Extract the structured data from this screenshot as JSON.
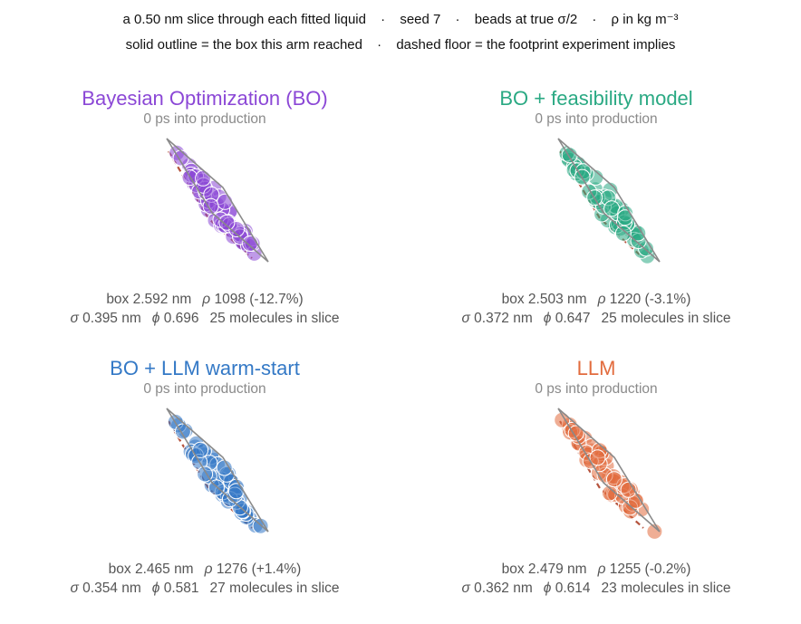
{
  "header": {
    "line1": [
      "a 0.50 nm slice through each fitted liquid",
      "seed 7",
      "beads at true σ/2",
      "ρ in kg m⁻³"
    ],
    "line2": [
      "solid outline = the box this arm reached",
      "dashed floor = the footprint experiment implies"
    ],
    "separator": "·"
  },
  "panels": [
    {
      "title": "Bayesian Optimization (BO)",
      "color": "#8b47d6",
      "subtitle": "0 ps into production",
      "box_label": "box 2.592 nm",
      "rho_label": "1098 (-12.7%)",
      "sigma_label": "0.395 nm",
      "phi_label": "0.696",
      "molecules_label": "25 molecules in slice",
      "box_nm": 2.592,
      "rho": 1098,
      "rho_dev_pct": -12.7,
      "sigma_nm": 0.395,
      "phi": 0.696,
      "molecules": 25
    },
    {
      "title": "BO + feasibility model",
      "color": "#2aa983",
      "subtitle": "0 ps into production",
      "box_label": "box 2.503 nm",
      "rho_label": "1220 (-3.1%)",
      "sigma_label": "0.372 nm",
      "phi_label": "0.647",
      "molecules_label": "25 molecules in slice",
      "box_nm": 2.503,
      "rho": 1220,
      "rho_dev_pct": -3.1,
      "sigma_nm": 0.372,
      "phi": 0.647,
      "molecules": 25
    },
    {
      "title": "BO + LLM warm-start",
      "color": "#3479c6",
      "subtitle": "0 ps into production",
      "box_label": "box 2.465 nm",
      "rho_label": "1276 (+1.4%)",
      "sigma_label": "0.354 nm",
      "phi_label": "0.581",
      "molecules_label": "27 molecules in slice",
      "box_nm": 2.465,
      "rho": 1276,
      "rho_dev_pct": 1.4,
      "sigma_nm": 0.354,
      "phi": 0.581,
      "molecules": 27
    },
    {
      "title": "LLM",
      "color": "#e26c3e",
      "subtitle": "0 ps into production",
      "box_label": "box 2.479 nm",
      "rho_label": "1255 (-0.2%)",
      "sigma_label": "0.362 nm",
      "phi_label": "0.614",
      "molecules_label": "23 molecules in slice",
      "box_nm": 2.479,
      "rho": 1255,
      "rho_dev_pct": -0.2,
      "sigma_nm": 0.362,
      "phi": 0.614,
      "molecules": 23
    }
  ],
  "colors": {
    "solid_outline": "#8a8a8a",
    "dashed_floor": "#b5533d"
  }
}
